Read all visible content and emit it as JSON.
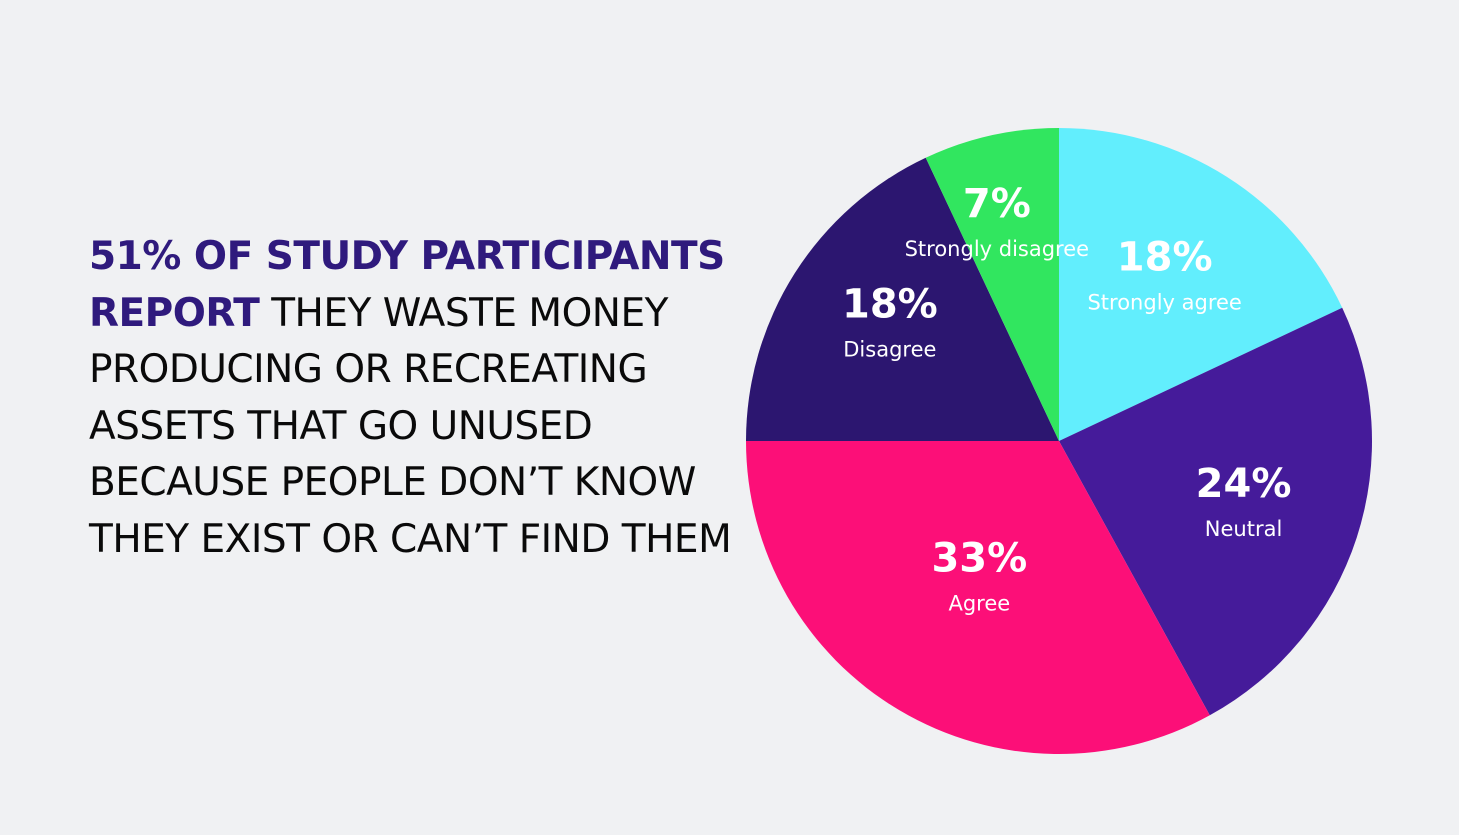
{
  "headline": {
    "highlight": "51% OF STUDY PARTICIPANTS REPORT",
    "rest": " THEY WASTE MONEY PRODUCING OR RECREATING ASSETS THAT GO UNUSED BECAUSE PEOPLE DON’T KNOW THEY EXIST OR CAN’T FIND THEM"
  },
  "chart_data": {
    "type": "pie",
    "title": "",
    "legend": "none",
    "slices": [
      {
        "label": "Strongly agree",
        "value": 18,
        "display": "18%",
        "color": "#62eefd"
      },
      {
        "label": "Neutral",
        "value": 24,
        "display": "24%",
        "color": "#451b9a"
      },
      {
        "label": "Agree",
        "value": 33,
        "display": "33%",
        "color": "#fc0f78"
      },
      {
        "label": "Disagree",
        "value": 18,
        "display": "18%",
        "color": "#2c1670"
      },
      {
        "label": "Strongly disagree",
        "value": 7,
        "display": "7%",
        "color": "#31e65f"
      }
    ]
  }
}
